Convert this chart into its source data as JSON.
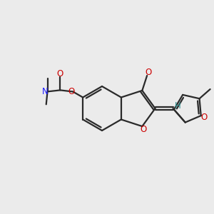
{
  "bg": "#ebebeb",
  "bc": "#2a2a2a",
  "oc": "#cc0000",
  "nc": "#1a1aff",
  "hc": "#2a9090",
  "lw": 1.6,
  "lw_thin": 1.3,
  "fsz": 8.5,
  "fsz_small": 7.5
}
